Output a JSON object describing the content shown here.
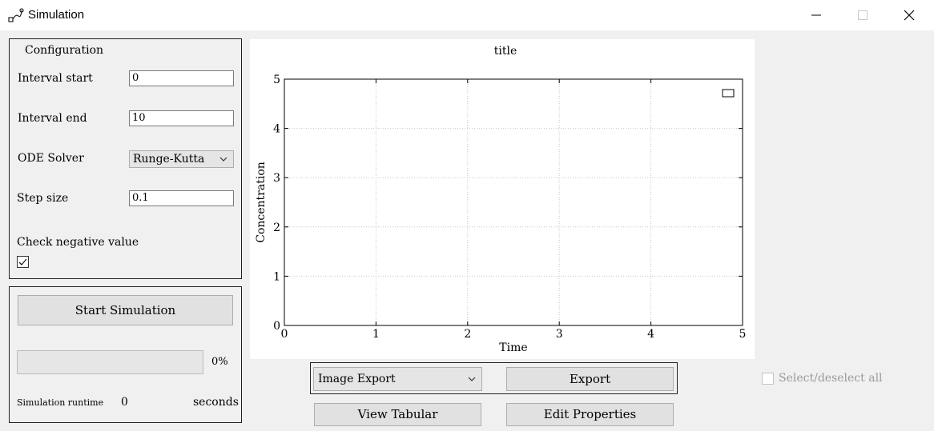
{
  "window": {
    "title": "Simulation"
  },
  "config": {
    "group_title": "Configuration",
    "interval_start_label": "Interval start",
    "interval_start_value": "0",
    "interval_end_label": "Interval end",
    "interval_end_value": "10",
    "ode_solver_label": "ODE Solver",
    "ode_solver_value": "Runge-Kutta",
    "step_size_label": "Step size",
    "step_size_value": "0.1",
    "check_negative_label": "Check negative value",
    "check_negative_checked": true
  },
  "simulation": {
    "start_button": "Start Simulation",
    "progress_percent": 0,
    "progress_text": "0%",
    "runtime_label": "Simulation runtime",
    "runtime_value": "0",
    "runtime_unit": "seconds"
  },
  "export": {
    "format_value": "Image Export",
    "export_button": "Export",
    "view_tabular_button": "View Tabular",
    "edit_properties_button": "Edit Properties",
    "select_all_label": "Select/deselect all"
  },
  "chart_data": {
    "type": "line",
    "title": "title",
    "xlabel": "Time",
    "ylabel": "Concentration",
    "xlim": [
      0,
      5
    ],
    "ylim": [
      0,
      5
    ],
    "x_ticks": [
      "0",
      "1",
      "2",
      "3",
      "4",
      "5"
    ],
    "y_ticks": [
      "0",
      "1",
      "2",
      "3",
      "4",
      "5"
    ],
    "grid": true,
    "legend": "top-right",
    "series": []
  }
}
